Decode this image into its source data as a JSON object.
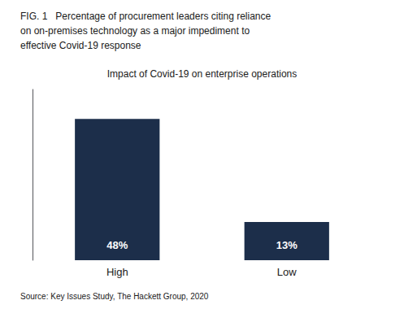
{
  "chart_data": {
    "type": "bar",
    "title": "FIG. 1   Percentage of procurement leaders citing reliance\non on-premises technology as a major impediment to\neffective Covid-19 response",
    "subtitle": "Impact of Covid-19 on enterprise operations",
    "annotations": [
      "Source: Key Issues Study, The Hackett Group, 2020"
    ],
    "categories": [
      "High",
      "Low"
    ],
    "values": [
      48,
      13
    ],
    "value_labels": [
      "48%",
      "13%"
    ],
    "data_labels": true,
    "color": "#1c2e4a",
    "ylim": [
      0,
      58
    ],
    "grid": false,
    "tick_labels": "x"
  }
}
